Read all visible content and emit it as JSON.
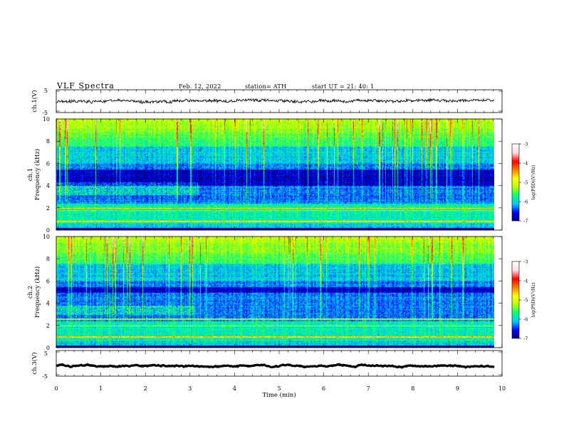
{
  "chart_data": {
    "type": "heatmap",
    "header": {
      "title": "VLF  Spectra",
      "date": "Feb. 12, 2022",
      "station": "station= ATH",
      "start_ut": "start  UT  =   21: 40: 1"
    },
    "xlabel": "Time  (min)",
    "xlim": [
      0,
      10
    ],
    "x_ticks": [
      "0",
      "1",
      "2",
      "3",
      "4",
      "5",
      "6",
      "7",
      "8",
      "9",
      "10"
    ],
    "data_end_min": 9.83,
    "panels": [
      {
        "id": "ch1-waveform",
        "type": "line",
        "ylabel": "ch.1(V)",
        "ylim": [
          -5,
          5
        ],
        "y_ticks": [
          "5",
          "-5"
        ],
        "trace_level": 0,
        "trace_amplitude": 1.2
      },
      {
        "id": "ch1-spectrogram",
        "type": "heatmap",
        "ylabel_top": "ch.1",
        "ylabel": "Frequency  (kHz)",
        "ylim": [
          0,
          10
        ],
        "y_ticks": [
          "0",
          "2",
          "4",
          "6",
          "8",
          "10"
        ],
        "dark_band_khz": [
          4.0,
          5.5
        ],
        "strong_lines_khz": [
          0.8,
          1.8,
          2.0
        ],
        "hiss_khz": [
          3.2,
          4.3
        ],
        "hiss_end_min": 3.2,
        "colorbar": {
          "label": "log(PSD)(V²/Hz)",
          "range": [
            -7,
            -3
          ],
          "ticks": [
            "-3",
            "-4",
            "-5",
            "-6",
            "-7"
          ]
        }
      },
      {
        "id": "ch2-spectrogram",
        "type": "heatmap",
        "ylabel_top": "ch.2",
        "ylabel": "Frequency  (kHz)",
        "ylim": [
          0,
          10
        ],
        "y_ticks": [
          "0",
          "2",
          "4",
          "6",
          "8",
          "10"
        ],
        "dark_band_khz": [
          5.0,
          5.5
        ],
        "strong_lines_khz": [
          1.0,
          2.0,
          2.6
        ],
        "hiss_khz": [
          3.0,
          3.8
        ],
        "hiss_end_min": 3.1,
        "colorbar": {
          "label": "log(PSD)(V²/Hz)",
          "range": [
            -7,
            -3
          ],
          "ticks": [
            "-3",
            "-4",
            "-5",
            "-6",
            "-7"
          ]
        }
      },
      {
        "id": "ch3-waveform",
        "type": "line",
        "ylabel": "ch.3(V)",
        "ylim": [
          -5,
          5
        ],
        "y_ticks": [
          "5",
          "-5"
        ],
        "trace_level": -1,
        "trace_amplitude": 0.15
      }
    ],
    "colors": {
      "scale": [
        "#00007a",
        "#0000ff",
        "#00c8ff",
        "#00ff7f",
        "#b4ff00",
        "#ffff00",
        "#ff8000",
        "#ff0000",
        "#ffdcdc",
        "#ffffff"
      ],
      "trace": "#000000"
    }
  }
}
